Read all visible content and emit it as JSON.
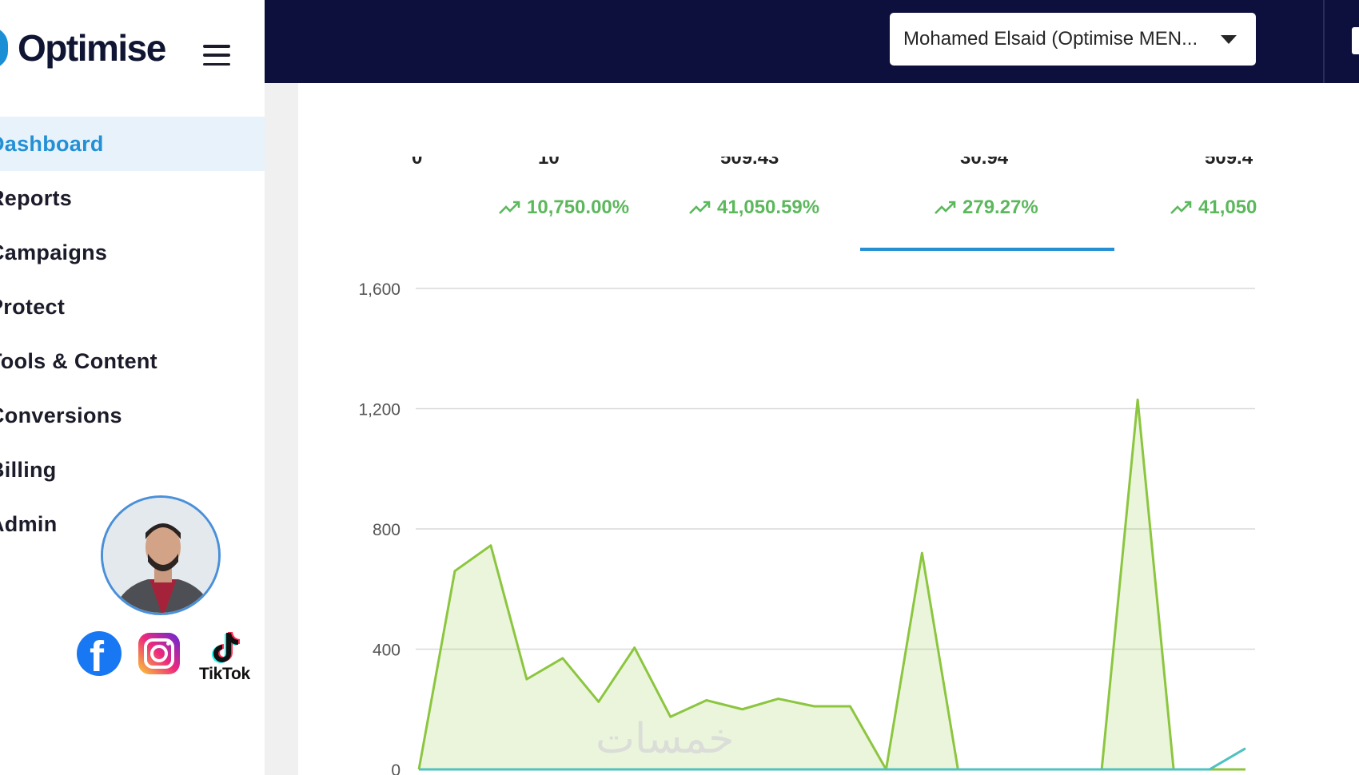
{
  "brand": {
    "name": "Optimise"
  },
  "nav": {
    "items": [
      {
        "label": "Dashboard",
        "active": true
      },
      {
        "label": "Reports"
      },
      {
        "label": "Campaigns"
      },
      {
        "label": "Protect"
      },
      {
        "label": "Tools & Content"
      },
      {
        "label": "Conversions"
      },
      {
        "label": "Billing"
      },
      {
        "label": "Admin"
      }
    ]
  },
  "header": {
    "user_select": {
      "value": "Mohamed Elsaid (Optimise MEN..."
    }
  },
  "socials": {
    "tiktok_label": "TikTok"
  },
  "kpis": [
    {
      "value": "0",
      "change": ""
    },
    {
      "value": "10",
      "change": "10,750.00%"
    },
    {
      "value": "509.43",
      "change": "41,050.59%"
    },
    {
      "value": "30.94",
      "change": "279.27%",
      "selected": true
    },
    {
      "value": "509.4",
      "change": "41,050"
    }
  ],
  "colors": {
    "accent": "#2390d5",
    "header_bg": "#0d0f3c",
    "positive": "#5cb85c",
    "series_primary": "#8cc63f",
    "series_secondary": "#4fc1c1"
  },
  "chart_data": {
    "type": "area",
    "ylim": [
      0,
      1600
    ],
    "yticks": [
      "0",
      "400",
      "800",
      "1,200",
      "1,600"
    ],
    "ytick_values": [
      0,
      400,
      800,
      1200,
      1600
    ],
    "series": [
      {
        "values": [
          0,
          660,
          745,
          300,
          370,
          225,
          405,
          175,
          230,
          200,
          235,
          210,
          210,
          0,
          720,
          0,
          0,
          0,
          0,
          0,
          1230,
          0,
          0,
          0
        ]
      },
      {
        "values": [
          0,
          0,
          0,
          0,
          0,
          0,
          0,
          0,
          0,
          0,
          0,
          0,
          0,
          0,
          0,
          0,
          0,
          0,
          0,
          0,
          0,
          0,
          0,
          70
        ]
      }
    ]
  },
  "watermark": "خمسات"
}
